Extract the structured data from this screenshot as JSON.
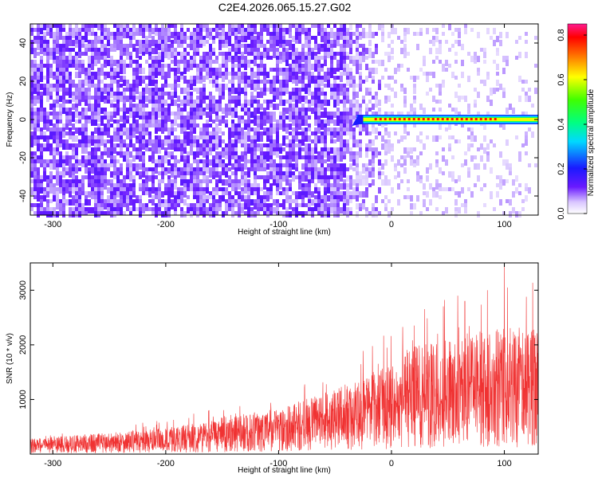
{
  "title": "C2E4.2026.065.15.27.G02",
  "chart_data": [
    {
      "type": "heatmap",
      "xlabel": "Height of straight line (km)",
      "ylabel": "Frequency (Hz)",
      "xlim": [
        -320,
        130
      ],
      "ylim": [
        -50,
        50
      ],
      "xticks": [
        -300,
        -200,
        -100,
        0,
        100
      ],
      "yticks": [
        -40,
        -20,
        0,
        20,
        40
      ],
      "xtick_labels": [
        "-300",
        "-200",
        "-100",
        "0",
        "100"
      ],
      "ytick_labels": [
        "-40",
        "-20",
        "0",
        "20",
        "40"
      ],
      "colorbar": {
        "label": "Normalized spectral amplitude",
        "range": [
          0,
          0.85
        ],
        "ticks": [
          0.0,
          0.2,
          0.4,
          0.6,
          0.8
        ],
        "tick_labels": [
          "0.0",
          "0.2",
          "0.4",
          "0.6",
          "0.8"
        ]
      },
      "signal": {
        "x_start": -35,
        "x_end": 130,
        "frequency": 0
      },
      "noise_amplitude_left": 0.1,
      "noise_amplitude_right": 0.02
    },
    {
      "type": "line",
      "xlabel": "Height of straight line (km)",
      "ylabel": "SNR (10 * v/v)",
      "xlim": [
        -320,
        130
      ],
      "ylim": [
        0,
        3500
      ],
      "xticks": [
        -300,
        -200,
        -100,
        0,
        100
      ],
      "yticks": [
        1000,
        2000,
        3000
      ],
      "xtick_labels": [
        "-300",
        "-200",
        "-100",
        "0",
        "100"
      ],
      "ytick_labels": [
        "1000",
        "2000",
        "3000"
      ],
      "color": "#f03232",
      "trend": [
        {
          "x": -320,
          "y": 150
        },
        {
          "x": -200,
          "y": 250
        },
        {
          "x": -100,
          "y": 450
        },
        {
          "x": -30,
          "y": 700
        },
        {
          "x": 20,
          "y": 1050
        },
        {
          "x": 80,
          "y": 1200
        },
        {
          "x": 130,
          "y": 1250
        }
      ],
      "peaks": [
        {
          "x": 100,
          "y": 3450
        },
        {
          "x": 65,
          "y": 2800
        },
        {
          "x": 85,
          "y": 3000
        }
      ]
    }
  ]
}
